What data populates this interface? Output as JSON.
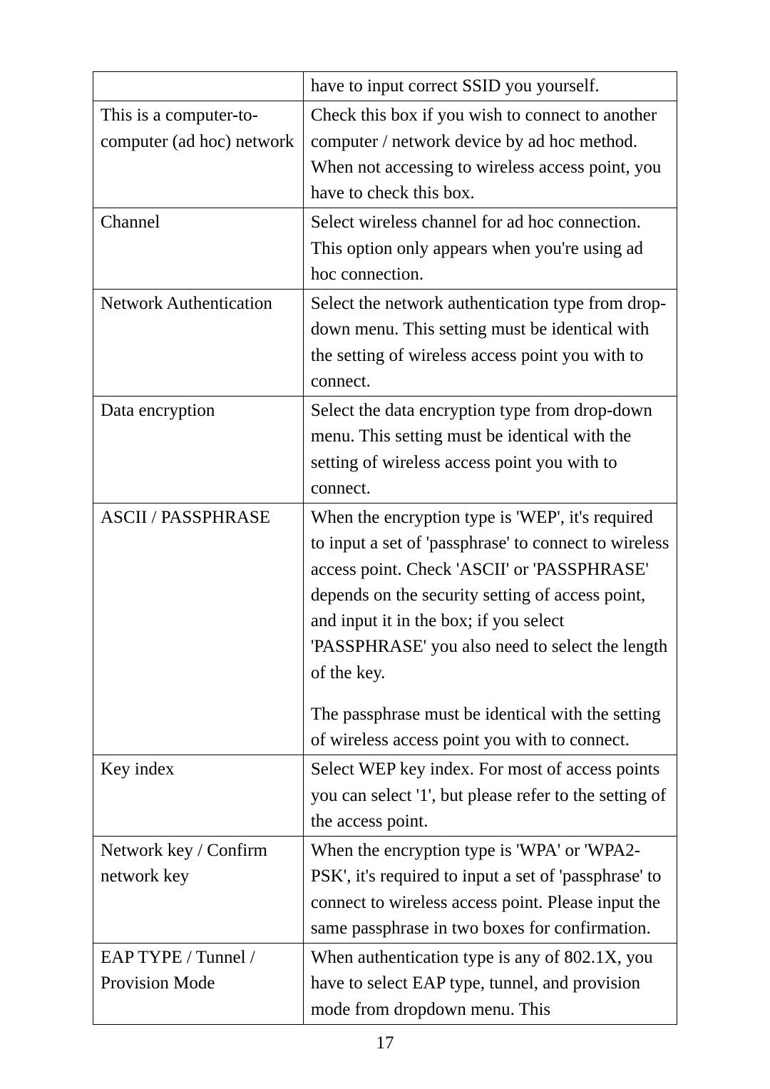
{
  "table": {
    "col_widths_pct": [
      36,
      64
    ],
    "border_color": "#000000",
    "font_family": "Times New Roman",
    "font_size_pt": 19,
    "rows": [
      {
        "left": "",
        "right": "have to input correct SSID you yourself."
      },
      {
        "left": "This is a computer-to-computer (ad hoc) network",
        "right": "Check this box if you wish to connect to another computer / network device by ad hoc method. When not accessing to wireless access point, you have to check this box."
      },
      {
        "left": "Channel",
        "right": "Select wireless channel for ad hoc connection. This option only appears when you're using ad hoc connection."
      },
      {
        "left": "Network Authentication",
        "right": "Select the network authentication type from drop-down menu. This setting must be identical with the setting of wireless access point you with to connect."
      },
      {
        "left": "Data encryption",
        "right": "Select the data encryption type from drop-down menu. This setting must be identical with the setting of wireless access point you with to connect."
      },
      {
        "left": "ASCII / PASSPHRASE",
        "right_paras": [
          "When the encryption type is 'WEP', it's required to input a set of 'passphrase' to connect to wireless access point. Check 'ASCII' or 'PASSPHRASE' depends on the security setting of access point, and input it in the box; if you select 'PASSPHRASE' you also need to select the length of the key.",
          "The passphrase must be identical with the setting of wireless access point you with to connect."
        ]
      },
      {
        "left": "Key index",
        "right": "Select WEP key index. For most of access points you can select '1', but please refer to the setting of the access point."
      },
      {
        "left": "Network key / Confirm network key",
        "right": "When the encryption type is 'WPA' or 'WPA2-PSK', it's required to input a set of 'passphrase' to connect to wireless access point. Please input the same passphrase in two boxes for confirmation."
      },
      {
        "left": "EAP TYPE / Tunnel / Provision Mode",
        "right": "When authentication type is any of 802.1X, you have to select EAP type, tunnel, and provision mode from dropdown menu. This"
      }
    ]
  },
  "page_number": "17"
}
